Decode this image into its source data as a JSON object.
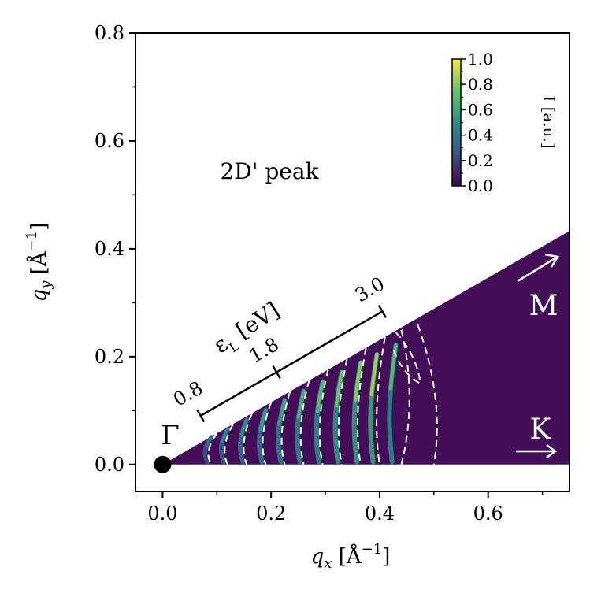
{
  "chart_data": {
    "type": "heatmap",
    "title": "",
    "xlabel": "q_x [Å^-1]",
    "ylabel": "q_y [Å^-1]",
    "xlim": [
      -0.05,
      0.75
    ],
    "ylim": [
      -0.05,
      0.8
    ],
    "xticks": [
      "0.0",
      "0.2",
      "0.4",
      "0.6"
    ],
    "xtick_values": [
      0.0,
      0.2,
      0.4,
      0.6
    ],
    "yticks": [
      "0.0",
      "0.2",
      "0.4",
      "0.6",
      "0.8"
    ],
    "ytick_values": [
      0.0,
      0.2,
      0.4,
      0.6,
      0.8
    ],
    "wedge": {
      "angle_deg": 30,
      "qx_max": 0.75
    },
    "annotation": "2D' peak",
    "points": {
      "gamma": {
        "label": "Γ",
        "qx": 0.0,
        "qy": 0.0
      },
      "M": {
        "label": "M"
      },
      "K": {
        "label": "K"
      }
    },
    "energy_scale": {
      "label": "ε_L [eV]",
      "ticks": [
        {
          "label": "0.8",
          "qx": 0.07
        },
        {
          "label": "1.8",
          "qx": 0.21
        },
        {
          "label": "3.0",
          "qx": 0.405
        }
      ]
    },
    "ridges": [
      {
        "qx": 0.09,
        "intensity": 0.35
      },
      {
        "qx": 0.12,
        "intensity": 0.45
      },
      {
        "qx": 0.155,
        "intensity": 0.5
      },
      {
        "qx": 0.19,
        "intensity": 0.55
      },
      {
        "qx": 0.225,
        "intensity": 0.6
      },
      {
        "qx": 0.26,
        "intensity": 0.65
      },
      {
        "qx": 0.295,
        "intensity": 0.7
      },
      {
        "qx": 0.33,
        "intensity": 0.75
      },
      {
        "qx": 0.365,
        "intensity": 0.8
      },
      {
        "qx": 0.395,
        "intensity": 0.85
      },
      {
        "qx": 0.43,
        "intensity": 0.7
      }
    ],
    "colorbar": {
      "label": "I [a.u.]",
      "colormap": "viridis",
      "range": [
        0.0,
        1.0
      ],
      "ticks": [
        "0.0",
        "0.2",
        "0.4",
        "0.6",
        "0.8",
        "1.0"
      ],
      "tick_values": [
        0.0,
        0.2,
        0.4,
        0.6,
        0.8,
        1.0
      ]
    },
    "colors": {
      "background_fill": "#440d58",
      "contour": "#ffffff",
      "marker": "#000000"
    }
  }
}
